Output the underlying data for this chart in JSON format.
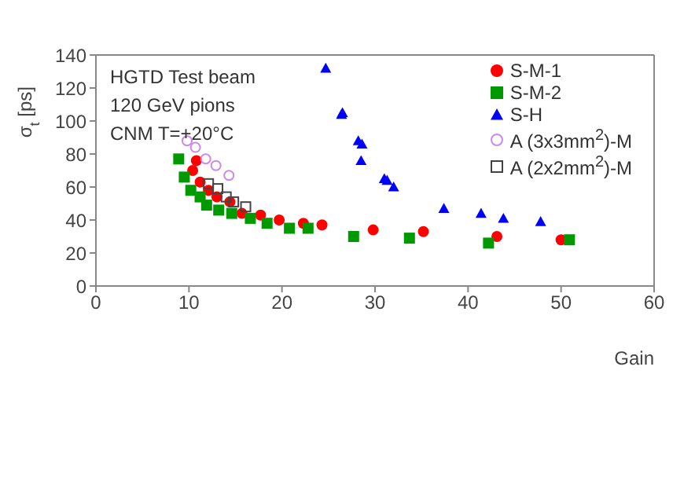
{
  "chart_data": {
    "type": "scatter",
    "xlabel": "Gain",
    "ylabel": "σ$_{t}$ [ps]",
    "xlim": [
      0,
      60
    ],
    "ylim": [
      0,
      140
    ],
    "xticks": [
      0,
      10,
      20,
      30,
      40,
      50,
      60
    ],
    "yticks": [
      0,
      20,
      40,
      60,
      80,
      100,
      120,
      140
    ],
    "legend": "top right",
    "annotations": [
      "HGTD Test beam",
      "120 GeV pions",
      "CNM T=+20°C"
    ],
    "series": [
      {
        "name": "S-M-1",
        "color": "#ff0000",
        "marker": "circle",
        "x": [
          10.8,
          10.4,
          11.2,
          12.1,
          13.0,
          14.4,
          15.7,
          17.7,
          19.7,
          22.3,
          24.3,
          29.8,
          35.2,
          43.1,
          50.0
        ],
        "values": [
          76,
          70,
          63,
          58,
          54,
          51,
          44,
          43,
          40,
          38,
          37,
          34,
          33,
          30,
          28
        ]
      },
      {
        "name": "S-M-2",
        "color": "#009900",
        "marker": "square",
        "x": [
          8.9,
          9.5,
          10.2,
          11.2,
          11.9,
          13.2,
          14.6,
          16.6,
          18.4,
          20.8,
          22.8,
          27.7,
          33.7,
          42.2,
          50.9
        ],
        "values": [
          77,
          66,
          58,
          54,
          49,
          46,
          44,
          41,
          38,
          35,
          35,
          30,
          29,
          26,
          28
        ]
      },
      {
        "name": "S-H",
        "color": "#0000ff",
        "marker": "triangle",
        "x": [
          24.7,
          26.4,
          26.5,
          28.2,
          28.6,
          28.5,
          31.0,
          31.3,
          32.0,
          37.4,
          41.4,
          43.8,
          47.8
        ],
        "values": [
          132,
          104,
          105,
          88,
          86,
          76,
          65,
          64,
          60,
          47,
          44,
          41,
          39
        ]
      },
      {
        "name": "A (3x3mm$^{2}$)-M",
        "color": "#cc88ee",
        "marker": "circle-open",
        "x": [
          9.8,
          10.7,
          11.8,
          12.9,
          14.3
        ],
        "values": [
          88,
          84,
          77,
          73,
          67
        ]
      },
      {
        "name": "A (2x2mm$^{2}$)-M",
        "color": "#444444",
        "marker": "square-open",
        "x": [
          12.1,
          13.1,
          14.0,
          14.8,
          16.1
        ],
        "values": [
          62,
          59,
          54,
          51,
          48
        ]
      }
    ]
  }
}
